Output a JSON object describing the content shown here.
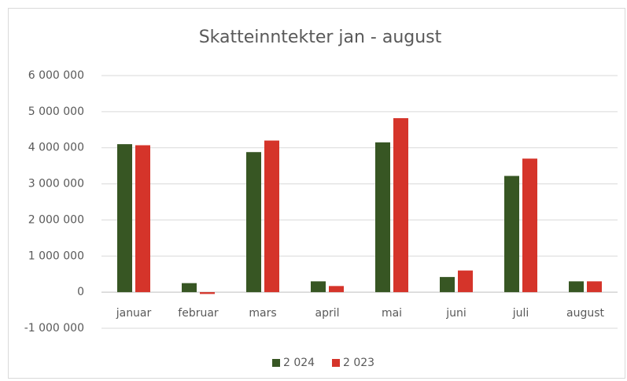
{
  "chart_data": {
    "type": "bar",
    "title": "Skatteinntekter jan - august",
    "categories": [
      "januar",
      "februar",
      "mars",
      "april",
      "mai",
      "juni",
      "juli",
      "august"
    ],
    "series": [
      {
        "name": "2 024",
        "color": "#375623",
        "values": [
          4100000,
          250000,
          3880000,
          300000,
          4150000,
          420000,
          3220000,
          300000
        ]
      },
      {
        "name": "2 023",
        "color": "#d5342a",
        "values": [
          4070000,
          -50000,
          4200000,
          170000,
          4820000,
          600000,
          3700000,
          300000
        ]
      }
    ],
    "ylim": [
      -1000000,
      6000000
    ],
    "yticks": [
      {
        "value": -1000000,
        "label": "-1 000 000"
      },
      0,
      {
        "value": 1000000,
        "label": "1 000 000"
      },
      {
        "value": 2000000,
        "label": "2 000 000"
      },
      {
        "value": 3000000,
        "label": "3 000 000"
      },
      {
        "value": 4000000,
        "label": "4 000 000"
      },
      {
        "value": 5000000,
        "label": "5 000 000"
      },
      {
        "value": 6000000,
        "label": "6 000 000"
      }
    ],
    "grid": true,
    "legend": "bottom"
  }
}
